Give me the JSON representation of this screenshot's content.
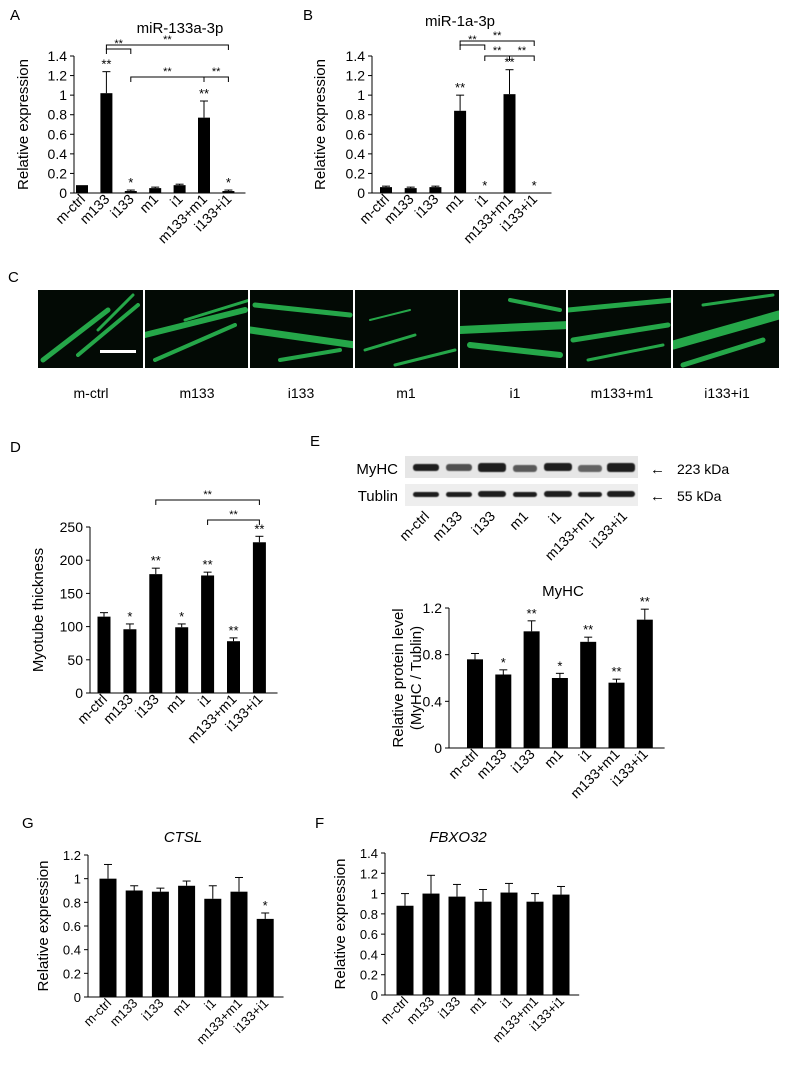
{
  "panel_letters": {
    "a": "A",
    "b": "B",
    "c": "C",
    "d": "D",
    "e": "E",
    "g": "G",
    "f": "F"
  },
  "charts": [
    {
      "key": "A",
      "type": "bar",
      "title": "miR-133a-3p",
      "title_italic": false,
      "ylabel": "Relative expression",
      "ylim": [
        0,
        1.4
      ],
      "yticks": [
        "0",
        "0.2",
        "0.4",
        "0.6",
        "0.8",
        "1",
        "1.2",
        "1.4"
      ],
      "categories": [
        "m-ctrl",
        "m133",
        "i133",
        "m1",
        "i1",
        "m133+m1",
        "i133+i1"
      ],
      "values": [
        0.08,
        1.02,
        0.02,
        0.05,
        0.08,
        0.77,
        0.02
      ],
      "errors": [
        0.0,
        0.22,
        0.01,
        0.01,
        0.01,
        0.17,
        0.01
      ],
      "marks": [
        "",
        "**",
        "*",
        "",
        "",
        "**",
        "*"
      ],
      "brackets": [
        {
          "from": 1,
          "to": 2,
          "label": "**"
        },
        {
          "from": 1,
          "to": 6,
          "label": "**"
        },
        {
          "from": 2,
          "to": 5,
          "label": "**"
        },
        {
          "from": 5,
          "to": 6,
          "label": "**"
        }
      ]
    },
    {
      "key": "B",
      "type": "bar",
      "title": "miR-1a-3p",
      "title_italic": false,
      "ylabel": "Relative expression",
      "ylim": [
        0,
        1.4
      ],
      "yticks": [
        "0",
        "0.2",
        "0.4",
        "0.6",
        "0.8",
        "1",
        "1.2",
        "1.4"
      ],
      "categories": [
        "m-ctrl",
        "m133",
        "i133",
        "m1",
        "i1",
        "m133+m1",
        "i133+i1"
      ],
      "values": [
        0.06,
        0.05,
        0.06,
        0.84,
        0.0,
        1.01,
        0.0
      ],
      "errors": [
        0.01,
        0.01,
        0.01,
        0.16,
        0.0,
        0.25,
        0.0
      ],
      "marks": [
        "",
        "",
        "",
        "**",
        "*",
        "**",
        "*"
      ],
      "brackets": [
        {
          "from": 3,
          "to": 4,
          "label": "**"
        },
        {
          "from": 3,
          "to": 6,
          "label": "**"
        },
        {
          "from": 4,
          "to": 5,
          "label": "**"
        },
        {
          "from": 5,
          "to": 6,
          "label": "**"
        }
      ]
    },
    {
      "key": "D",
      "type": "bar",
      "title": "",
      "title_italic": false,
      "ylabel": "Myotube thickness",
      "ylim": [
        0,
        250
      ],
      "yticks": [
        "0",
        "50",
        "100",
        "150",
        "200",
        "250"
      ],
      "categories": [
        "m-ctrl",
        "m133",
        "i133",
        "m1",
        "i1",
        "m133+m1",
        "i133+i1"
      ],
      "values": [
        115,
        96,
        179,
        99,
        177,
        78,
        227
      ],
      "errors": [
        6,
        8,
        9,
        5,
        5,
        5,
        9
      ],
      "marks": [
        "",
        "*",
        "**",
        "*",
        "**",
        "**",
        "**"
      ],
      "brackets": [
        {
          "from": 2,
          "to": 6,
          "label": "**"
        },
        {
          "from": 4,
          "to": 6,
          "label": "**"
        }
      ]
    },
    {
      "key": "E",
      "type": "bar",
      "title": "MyHC",
      "title_italic": false,
      "ylabel": "Relative protein level",
      "ylabel2": "(MyHC / Tublin)",
      "ylim": [
        0,
        1.2
      ],
      "yticks": [
        "0",
        "0.4",
        "0.8",
        "1.2"
      ],
      "categories": [
        "m-ctrl",
        "m133",
        "i133",
        "m1",
        "i1",
        "m133+m1",
        "i133+i1"
      ],
      "values": [
        0.76,
        0.63,
        1.0,
        0.6,
        0.91,
        0.56,
        1.1
      ],
      "errors": [
        0.05,
        0.04,
        0.09,
        0.04,
        0.04,
        0.03,
        0.09
      ],
      "marks": [
        "",
        "*",
        "**",
        "*",
        "**",
        "**",
        "**"
      ],
      "brackets": []
    },
    {
      "key": "G",
      "type": "bar",
      "title": "CTSL",
      "title_italic": true,
      "ylabel": "Relative expression",
      "ylim": [
        0,
        1.2
      ],
      "yticks": [
        "0",
        "0.2",
        "0.4",
        "0.6",
        "0.8",
        "1",
        "1.2"
      ],
      "categories": [
        "m-ctrl",
        "m133",
        "i133",
        "m1",
        "i1",
        "m133+m1",
        "i133+i1"
      ],
      "values": [
        1.0,
        0.9,
        0.89,
        0.94,
        0.83,
        0.89,
        0.66
      ],
      "errors": [
        0.12,
        0.04,
        0.03,
        0.04,
        0.11,
        0.12,
        0.05
      ],
      "marks": [
        "",
        "",
        "",
        "",
        "",
        "",
        "*"
      ],
      "brackets": []
    },
    {
      "key": "F",
      "type": "bar",
      "title": "FBXO32",
      "title_italic": true,
      "ylabel": "Relative expression",
      "ylim": [
        0,
        1.4
      ],
      "yticks": [
        "0",
        "0.2",
        "0.4",
        "0.6",
        "0.8",
        "1",
        "1.2",
        "1.4"
      ],
      "categories": [
        "m-ctrl",
        "m133",
        "i133",
        "m1",
        "i1",
        "m133+m1",
        "i133+i1"
      ],
      "values": [
        0.88,
        1.0,
        0.97,
        0.92,
        1.01,
        0.92,
        0.99
      ],
      "errors": [
        0.12,
        0.18,
        0.12,
        0.12,
        0.09,
        0.08,
        0.08
      ],
      "marks": [
        "",
        "",
        "",
        "",
        "",
        "",
        ""
      ],
      "brackets": []
    }
  ],
  "images": {
    "labels": [
      "m-ctrl",
      "m133",
      "i133",
      "m1",
      "i1",
      "m133+m1",
      "i133+i1"
    ],
    "fluorescence_color": "#2ecf5a"
  },
  "blot": {
    "rows": [
      "MyHC",
      "Tublin"
    ],
    "sizes": [
      "223 kDa",
      "55 kDa"
    ],
    "arrow": "←",
    "lanes": [
      "m-ctrl",
      "m133",
      "i133",
      "m1",
      "i1",
      "m133+m1",
      "i133+i1"
    ]
  }
}
